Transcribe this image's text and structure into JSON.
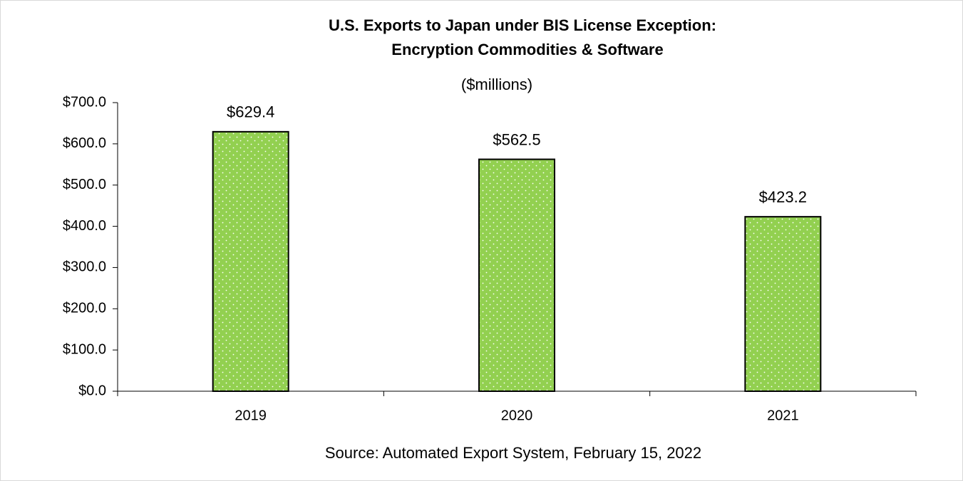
{
  "chart_data": {
    "type": "bar",
    "title": [
      "U.S. Exports to Japan under BIS License Exception:",
      "Encryption Commodities & Software"
    ],
    "subtitle": "($millions)",
    "note": "Source: Automated Export System, February 15, 2022",
    "categories": [
      "2019",
      "2020",
      "2021"
    ],
    "values": [
      629.4,
      562.5,
      423.2
    ],
    "value_labels": [
      "$629.4",
      "$562.5",
      "$423.2"
    ],
    "color": "#92d050",
    "ylim": [
      0,
      700
    ],
    "yticks": [
      {
        "value": 0,
        "label": "$0.0"
      },
      {
        "value": 100,
        "label": "$100.0"
      },
      {
        "value": 200,
        "label": "$200.0"
      },
      {
        "value": 300,
        "label": "$300.0"
      },
      {
        "value": 400,
        "label": "$400.0"
      },
      {
        "value": 500,
        "label": "$500.0"
      },
      {
        "value": 600,
        "label": "$600.0"
      },
      {
        "value": 700,
        "label": "$700.0"
      }
    ],
    "grid": false
  }
}
